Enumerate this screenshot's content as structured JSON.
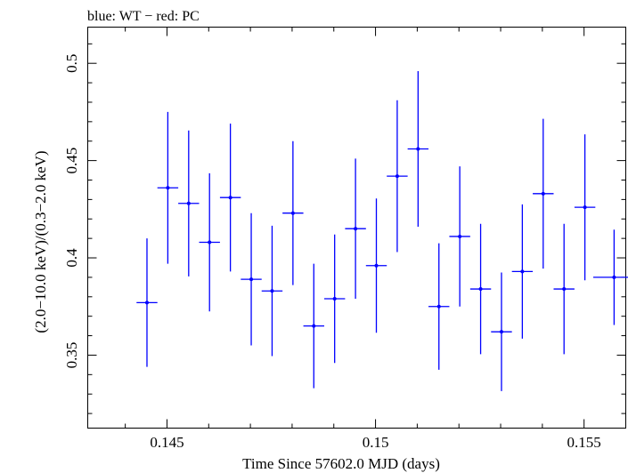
{
  "chart_data": {
    "type": "scatter",
    "title": "blue: WT − red: PC",
    "xlabel": "Time Since 57602.0 MJD (days)",
    "ylabel": "(2.0−10.0 keV)/(0.3−2.0 keV)",
    "xlim": [
      0.1431,
      0.156
    ],
    "ylim": [
      0.3125,
      0.5186
    ],
    "x_ticks": [
      {
        "value": 0.145,
        "label": "0.145"
      },
      {
        "value": 0.15,
        "label": "0.15"
      },
      {
        "value": 0.155,
        "label": "0.155"
      }
    ],
    "x_minor_ticks": [
      0.144,
      0.146,
      0.147,
      0.148,
      0.149,
      0.151,
      0.152,
      0.153,
      0.154
    ],
    "y_ticks": [
      {
        "value": 0.35,
        "label": "0.35"
      },
      {
        "value": 0.4,
        "label": "0.4"
      },
      {
        "value": 0.45,
        "label": "0.45"
      },
      {
        "value": 0.5,
        "label": "0.5"
      }
    ],
    "y_minor_ticks": [
      0.32,
      0.33,
      0.34,
      0.36,
      0.37,
      0.38,
      0.39,
      0.41,
      0.42,
      0.43,
      0.44,
      0.46,
      0.47,
      0.48,
      0.49,
      0.51
    ],
    "series": [
      {
        "color": "#0000ff",
        "points": [
          {
            "x": 0.14452,
            "xerr": 0.00025,
            "y": 0.377,
            "yerr": 0.033
          },
          {
            "x": 0.14502,
            "xerr": 0.00025,
            "y": 0.436,
            "yerr": 0.039
          },
          {
            "x": 0.14552,
            "xerr": 0.00025,
            "y": 0.428,
            "yerr": 0.0375
          },
          {
            "x": 0.14602,
            "xerr": 0.00025,
            "y": 0.408,
            "yerr": 0.0355
          },
          {
            "x": 0.14652,
            "xerr": 0.00025,
            "y": 0.431,
            "yerr": 0.038
          },
          {
            "x": 0.14702,
            "xerr": 0.00025,
            "y": 0.389,
            "yerr": 0.034
          },
          {
            "x": 0.14752,
            "xerr": 0.00025,
            "y": 0.383,
            "yerr": 0.0335
          },
          {
            "x": 0.14802,
            "xerr": 0.00025,
            "y": 0.423,
            "yerr": 0.037
          },
          {
            "x": 0.14852,
            "xerr": 0.00025,
            "y": 0.365,
            "yerr": 0.032
          },
          {
            "x": 0.14902,
            "xerr": 0.00025,
            "y": 0.379,
            "yerr": 0.033
          },
          {
            "x": 0.14952,
            "xerr": 0.00025,
            "y": 0.415,
            "yerr": 0.036
          },
          {
            "x": 0.15002,
            "xerr": 0.00025,
            "y": 0.396,
            "yerr": 0.0345
          },
          {
            "x": 0.15052,
            "xerr": 0.00025,
            "y": 0.442,
            "yerr": 0.039
          },
          {
            "x": 0.15102,
            "xerr": 0.00025,
            "y": 0.456,
            "yerr": 0.04
          },
          {
            "x": 0.15152,
            "xerr": 0.00025,
            "y": 0.375,
            "yerr": 0.0325
          },
          {
            "x": 0.15202,
            "xerr": 0.00025,
            "y": 0.411,
            "yerr": 0.036
          },
          {
            "x": 0.15252,
            "xerr": 0.00025,
            "y": 0.384,
            "yerr": 0.0335
          },
          {
            "x": 0.15302,
            "xerr": 0.00025,
            "y": 0.362,
            "yerr": 0.0305
          },
          {
            "x": 0.15352,
            "xerr": 0.00025,
            "y": 0.393,
            "yerr": 0.0345
          },
          {
            "x": 0.15402,
            "xerr": 0.00025,
            "y": 0.433,
            "yerr": 0.0385
          },
          {
            "x": 0.15452,
            "xerr": 0.00025,
            "y": 0.384,
            "yerr": 0.0335
          },
          {
            "x": 0.15502,
            "xerr": 0.00025,
            "y": 0.426,
            "yerr": 0.0375
          },
          {
            "x": 0.15572,
            "xerr": 0.0005,
            "y": 0.39,
            "yerr": 0.0245
          }
        ]
      }
    ]
  }
}
